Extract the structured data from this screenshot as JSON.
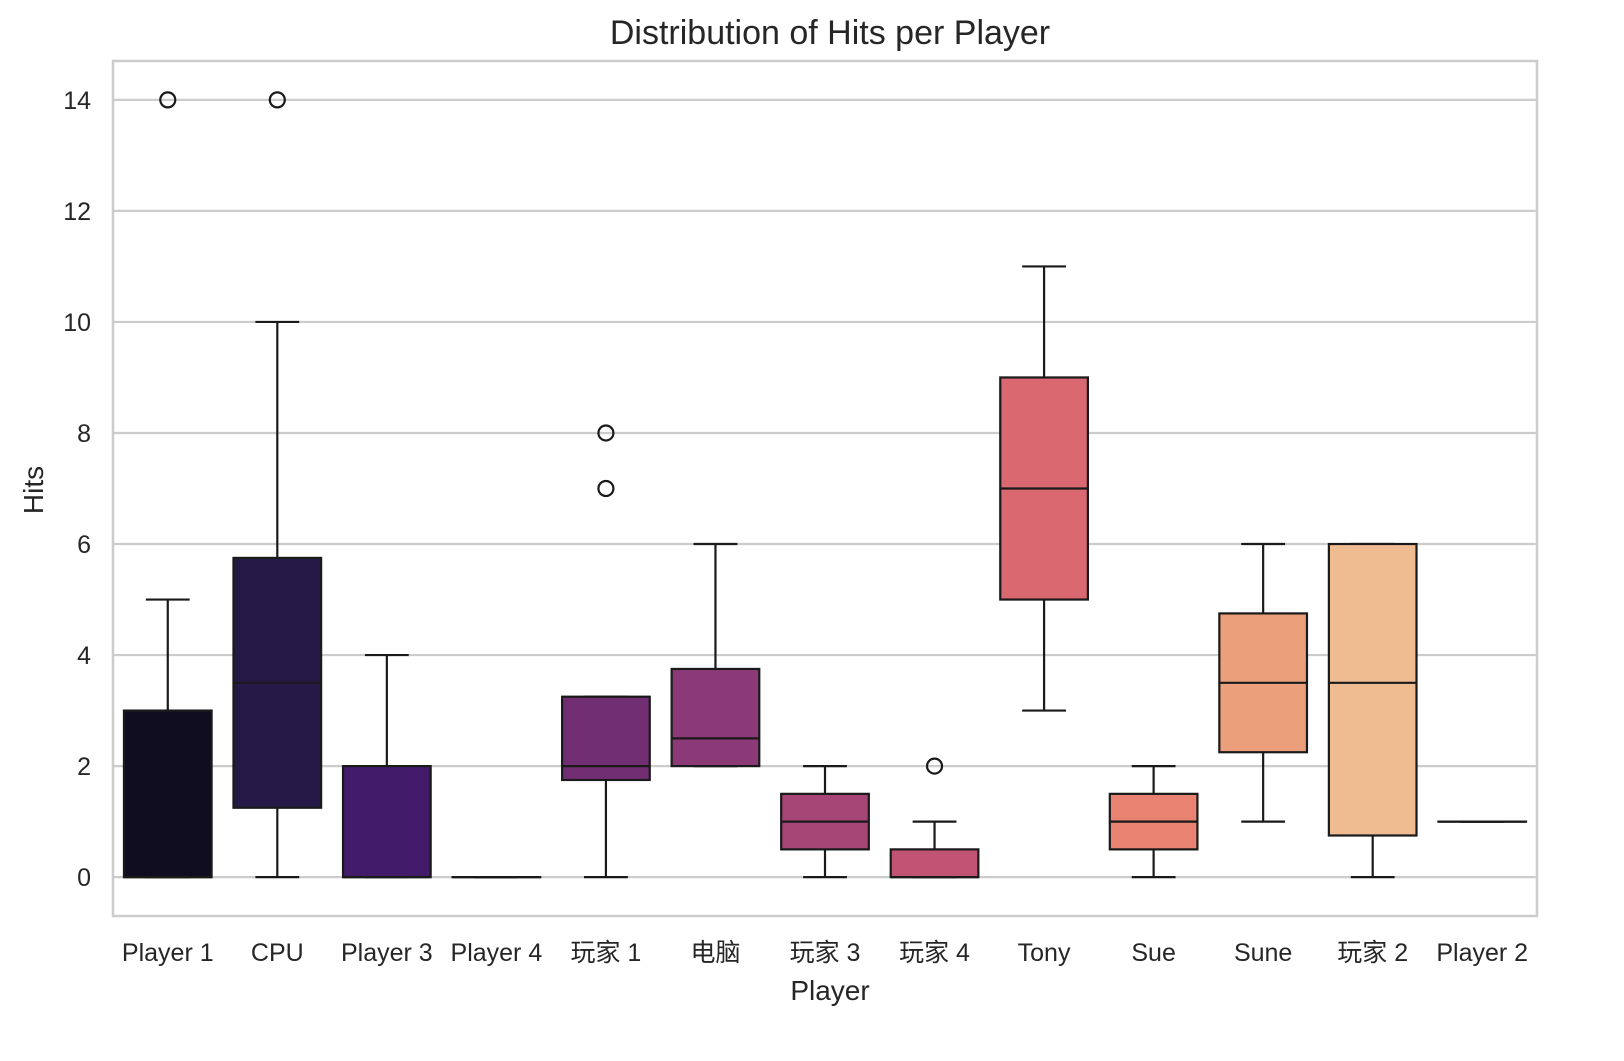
{
  "chart_data": {
    "type": "box",
    "title": "Distribution of Hits per Player",
    "xlabel": "Player",
    "ylabel": "Hits",
    "ylim": [
      -0.7,
      14.7
    ],
    "yticks": [
      0,
      2,
      4,
      6,
      8,
      10,
      12,
      14
    ],
    "grid": true,
    "legend": "none",
    "categories": [
      "Player 1",
      "CPU",
      "Player 3",
      "Player 4",
      "玩家 1",
      "电脑",
      "玩家 3",
      "玩家 4",
      "Tony",
      "Sue",
      "Sune",
      "玩家 2",
      "Player 2"
    ],
    "boxes": [
      {
        "name": "Player 1",
        "whislo": 0,
        "q1": 0,
        "med": 0,
        "q3": 3,
        "whishi": 5,
        "fliers": [
          14
        ],
        "color": "#100d21"
      },
      {
        "name": "CPU",
        "whislo": 0,
        "q1": 1.25,
        "med": 3.5,
        "q3": 5.75,
        "whishi": 10,
        "fliers": [
          14
        ],
        "color": "#251a47"
      },
      {
        "name": "Player 3",
        "whislo": 0,
        "q1": 0,
        "med": 0,
        "q3": 2,
        "whishi": 4,
        "fliers": [],
        "color": "#421c6a"
      },
      {
        "name": "Player 4",
        "whislo": 0,
        "q1": 0,
        "med": 0,
        "q3": 0,
        "whishi": 0,
        "fliers": [],
        "color": "#581f75"
      },
      {
        "name": "玩家 1",
        "whislo": 0,
        "q1": 1.75,
        "med": 2,
        "q3": 3.25,
        "whishi": 3.25,
        "fliers": [
          7,
          8
        ],
        "color": "#712e73"
      },
      {
        "name": "电脑",
        "whislo": 2,
        "q1": 2,
        "med": 2.5,
        "q3": 3.75,
        "whishi": 6,
        "fliers": [],
        "color": "#8b3a77"
      },
      {
        "name": "玩家 3",
        "whislo": 0,
        "q1": 0.5,
        "med": 1,
        "q3": 1.5,
        "whishi": 2,
        "fliers": [],
        "color": "#a64677"
      },
      {
        "name": "玩家 4",
        "whislo": 0,
        "q1": 0,
        "med": 0,
        "q3": 0.5,
        "whishi": 1,
        "fliers": [
          2
        ],
        "color": "#c25473"
      },
      {
        "name": "Tony",
        "whislo": 3,
        "q1": 5,
        "med": 7,
        "q3": 9,
        "whishi": 11,
        "fliers": [],
        "color": "#da6870"
      },
      {
        "name": "Sue",
        "whislo": 0,
        "q1": 0.5,
        "med": 1,
        "q3": 1.5,
        "whishi": 2,
        "fliers": [],
        "color": "#e78370"
      },
      {
        "name": "Sune",
        "whislo": 1,
        "q1": 2.25,
        "med": 3.5,
        "q3": 4.75,
        "whishi": 6,
        "fliers": [],
        "color": "#eba07b"
      },
      {
        "name": "玩家 2",
        "whislo": 0,
        "q1": 0.75,
        "med": 3.5,
        "q3": 6,
        "whishi": 6,
        "fliers": [],
        "color": "#efbc92"
      },
      {
        "name": "Player 2",
        "whislo": 1,
        "q1": 1,
        "med": 1,
        "q3": 1,
        "whishi": 1,
        "fliers": [],
        "color": "#f3d6ad"
      }
    ]
  },
  "colors": {
    "grid": "#cccccc",
    "frame": "#cccccc",
    "line": "#1a1a1a",
    "text": "#262626"
  }
}
